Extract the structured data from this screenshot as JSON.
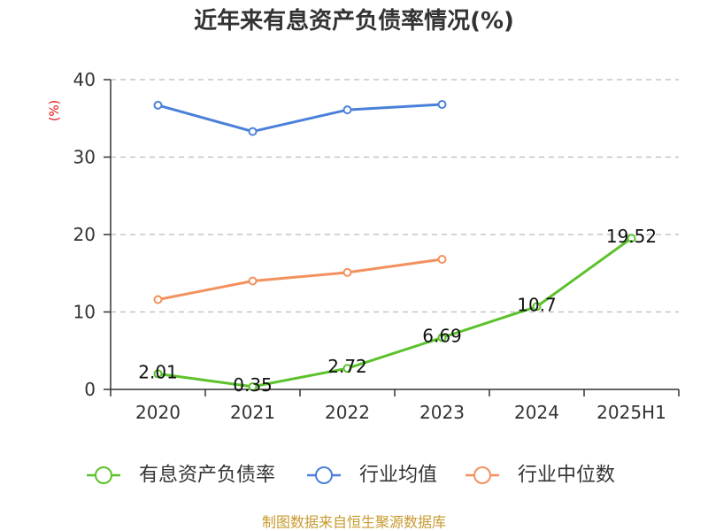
{
  "chart_data": {
    "type": "line",
    "title": "近年来有息资产负债率情况(%)",
    "ylabel": "(%)",
    "xlabel": "",
    "categories": [
      "2020",
      "2021",
      "2022",
      "2023",
      "2024",
      "2025H1"
    ],
    "ylim": [
      0,
      40
    ],
    "yticks": [
      0,
      10,
      20,
      30,
      40
    ],
    "grid": true,
    "legend_position": "bottom",
    "series": [
      {
        "name": "有息资产负债率",
        "color": "#5bc22b",
        "values": [
          2.01,
          0.35,
          2.72,
          6.69,
          10.7,
          19.52
        ],
        "show_data_labels": true
      },
      {
        "name": "行业均值",
        "color": "#4a80d9",
        "values": [
          36.7,
          33.3,
          36.1,
          36.8,
          null,
          null
        ],
        "show_data_labels": false
      },
      {
        "name": "行业中位数",
        "color": "#f3915e",
        "values": [
          11.6,
          14.0,
          15.1,
          16.8,
          null,
          null
        ],
        "show_data_labels": false
      }
    ]
  },
  "footer": "制图数据来自恒生聚源数据库",
  "colors": {
    "axis": "#333333",
    "grid": "#bbbbbb",
    "ylabel": "#e01010",
    "footer": "#c79a2e"
  }
}
